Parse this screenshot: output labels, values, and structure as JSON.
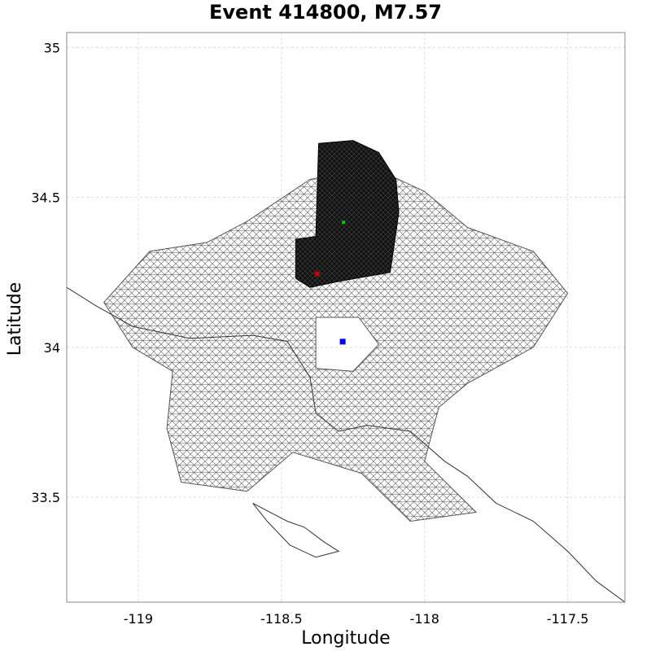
{
  "chart_data": {
    "type": "scatter",
    "title": "Event 414800, M7.57",
    "xlabel": "Longitude",
    "ylabel": "Latitude",
    "xlim": [
      -119.25,
      -117.3
    ],
    "ylim": [
      33.15,
      35.05
    ],
    "x_ticks": [
      {
        "value": -119,
        "label": "-119"
      },
      {
        "value": -118.5,
        "label": "-118.5"
      },
      {
        "value": -118,
        "label": "-118"
      },
      {
        "value": -117.5,
        "label": "-117.5"
      }
    ],
    "y_ticks": [
      {
        "value": 33.5,
        "label": "33.5"
      },
      {
        "value": 34,
        "label": "34"
      },
      {
        "value": 34.5,
        "label": "34.5"
      },
      {
        "value": 35,
        "label": "35"
      }
    ],
    "grid": true,
    "series": [
      {
        "marker": "square",
        "color": "#0000ff",
        "points": [
          {
            "x": -118.286,
            "y": 34.019
          }
        ]
      },
      {
        "marker": "star",
        "color": "#cc0000",
        "points": [
          {
            "x": -118.375,
            "y": 34.245
          }
        ]
      },
      {
        "marker": "square-small",
        "color": "#00cc00",
        "points": [
          {
            "x": -118.283,
            "y": 34.417
          }
        ]
      }
    ],
    "subsection_region": {
      "color": "#555555",
      "outline": [
        [
          -118.76,
          34.35
        ],
        [
          -118.62,
          34.42
        ],
        [
          -118.4,
          34.56
        ],
        [
          -118.18,
          34.6
        ],
        [
          -118.0,
          34.52
        ],
        [
          -117.85,
          34.4
        ],
        [
          -117.62,
          34.32
        ],
        [
          -117.5,
          34.18
        ],
        [
          -117.62,
          34.0
        ],
        [
          -117.85,
          33.88
        ],
        [
          -117.95,
          33.8
        ],
        [
          -118.0,
          33.62
        ],
        [
          -117.82,
          33.45
        ],
        [
          -118.05,
          33.42
        ],
        [
          -118.22,
          33.58
        ],
        [
          -118.46,
          33.65
        ],
        [
          -118.62,
          33.52
        ],
        [
          -118.85,
          33.55
        ],
        [
          -118.9,
          33.73
        ],
        [
          -118.88,
          33.92
        ],
        [
          -119.02,
          34.0
        ],
        [
          -119.12,
          34.15
        ],
        [
          -118.96,
          34.32
        ]
      ],
      "hole": [
        [
          -118.38,
          34.1
        ],
        [
          -118.23,
          34.1
        ],
        [
          -118.16,
          34.01
        ],
        [
          -118.25,
          33.92
        ],
        [
          -118.38,
          33.93
        ]
      ]
    },
    "rupture_region": {
      "color": "#000000",
      "outline": [
        [
          -118.37,
          34.68
        ],
        [
          -118.25,
          34.69
        ],
        [
          -118.16,
          34.65
        ],
        [
          -118.1,
          34.56
        ],
        [
          -118.09,
          34.45
        ],
        [
          -118.12,
          34.25
        ],
        [
          -118.3,
          34.22
        ],
        [
          -118.4,
          34.2
        ],
        [
          -118.45,
          34.23
        ],
        [
          -118.45,
          34.36
        ],
        [
          -118.38,
          34.37
        ]
      ]
    },
    "coastline": [
      [
        -119.25,
        34.2
      ],
      [
        -119.15,
        34.14
      ],
      [
        -119.02,
        34.07
      ],
      [
        -118.82,
        34.03
      ],
      [
        -118.6,
        34.04
      ],
      [
        -118.48,
        34.02
      ],
      [
        -118.4,
        33.9
      ],
      [
        -118.38,
        33.78
      ],
      [
        -118.3,
        33.72
      ],
      [
        -118.2,
        33.74
      ],
      [
        -118.05,
        33.72
      ],
      [
        -117.93,
        33.62
      ],
      [
        -117.85,
        33.57
      ],
      [
        -117.75,
        33.48
      ],
      [
        -117.62,
        33.42
      ],
      [
        -117.5,
        33.32
      ],
      [
        -117.4,
        33.22
      ],
      [
        -117.3,
        33.15
      ]
    ],
    "island": [
      [
        -118.6,
        33.48
      ],
      [
        -118.48,
        33.42
      ],
      [
        -118.42,
        33.4
      ],
      [
        -118.35,
        33.35
      ],
      [
        -118.3,
        33.32
      ],
      [
        -118.38,
        33.3
      ],
      [
        -118.47,
        33.34
      ],
      [
        -118.55,
        33.42
      ]
    ]
  }
}
